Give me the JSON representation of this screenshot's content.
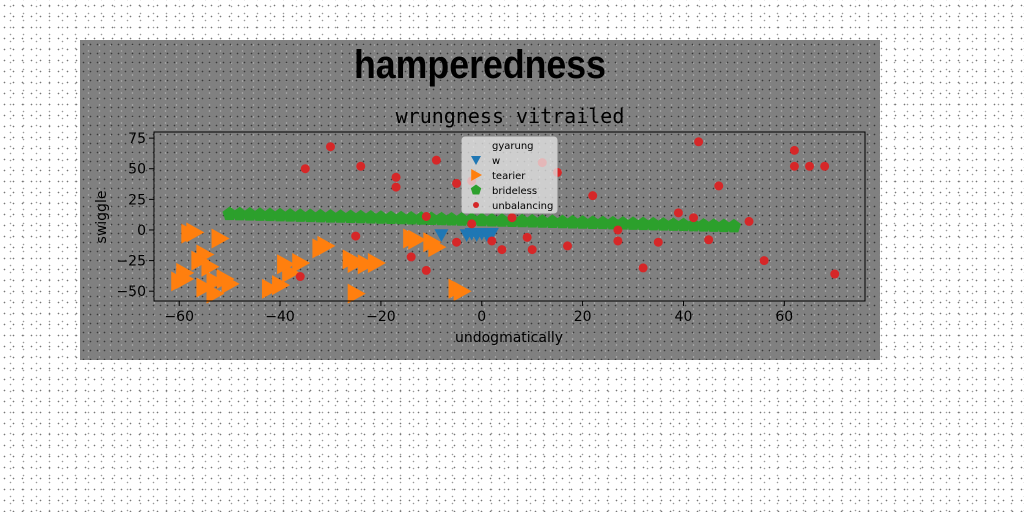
{
  "chart_data": {
    "suptitle": "hamperedness",
    "title": "wrungness vitrailed",
    "type": "scatter",
    "xlabel": "undogmatically",
    "ylabel": "swiggle",
    "xlim": [
      -65,
      76
    ],
    "ylim": [
      -58,
      80
    ],
    "xticks": [
      -60,
      -40,
      -20,
      0,
      20,
      40,
      60
    ],
    "yticks": [
      -50,
      -25,
      0,
      25,
      50,
      75
    ],
    "grid": false,
    "legend_position": "top-center",
    "series": [
      {
        "name": "gyarung",
        "marker": "none",
        "color": "#cccccc",
        "x": [],
        "y": []
      },
      {
        "name": "w",
        "marker": "triangle-down",
        "color": "#1f77b4",
        "x": [
          -8,
          -3,
          -2,
          -1,
          0,
          1,
          2
        ],
        "y": [
          -4,
          -4,
          -3,
          -4,
          -3,
          -4,
          -3
        ]
      },
      {
        "name": "tearier",
        "marker": "triangle-right",
        "color": "#ff7f0e",
        "x": [
          -58,
          -57,
          -55,
          -56,
          -54,
          -53,
          -51,
          -50,
          -59,
          -60,
          -59,
          -55,
          -52,
          -42,
          -40,
          -38,
          -39,
          -36,
          -32,
          -31,
          -26,
          -25,
          -23,
          -21,
          -14,
          -13,
          -10,
          -9,
          -5,
          -4,
          -25,
          -53
        ],
        "y": [
          -3,
          -2,
          -20,
          -25,
          -30,
          -42,
          -40,
          -44,
          -35,
          -42,
          -40,
          -47,
          -7,
          -48,
          -45,
          -35,
          -28,
          -27,
          -15,
          -13,
          -24,
          -27,
          -28,
          -27,
          -7,
          -8,
          -10,
          -14,
          -48,
          -50,
          -52,
          -52
        ]
      },
      {
        "name": "brideless",
        "marker": "pentagon",
        "color": "#2ca02c",
        "x": [
          -50,
          -48,
          -46,
          -44,
          -42,
          -40,
          -38,
          -36,
          -34,
          -32,
          -30,
          -28,
          -26,
          -24,
          -22,
          -20,
          -18,
          -16,
          -14,
          -12,
          -10,
          -8,
          -6,
          -4,
          -2,
          0,
          2,
          4,
          6,
          8,
          10,
          12,
          14,
          16,
          18,
          20,
          22,
          24,
          26,
          28,
          30,
          32,
          34,
          36,
          38,
          40,
          42,
          44,
          46,
          48,
          50
        ],
        "y": [
          13,
          12.8,
          12.6,
          12.4,
          12.2,
          12,
          11.8,
          11.6,
          11.4,
          11.2,
          11,
          10.8,
          10.6,
          10.4,
          10.2,
          10,
          9.8,
          9.6,
          9.4,
          9.2,
          9,
          8.8,
          8.6,
          8.4,
          8.2,
          8,
          7.8,
          7.6,
          7.4,
          7.2,
          7,
          6.8,
          6.6,
          6.4,
          6.2,
          6,
          5.8,
          5.6,
          5.4,
          5.2,
          5,
          4.8,
          4.6,
          4.4,
          4.2,
          4,
          3.8,
          3.6,
          3.4,
          3.2,
          3
        ]
      },
      {
        "name": "unbalancing",
        "marker": "circle",
        "color": "#d62728",
        "x": [
          -35,
          -30,
          -24,
          -17,
          -17,
          -9,
          -11,
          -25,
          -36,
          -14,
          -11,
          -5,
          -5,
          -2,
          -2,
          2,
          4,
          6,
          9,
          10,
          12,
          15,
          17,
          22,
          27,
          27,
          32,
          35,
          39,
          42,
          43,
          45,
          47,
          53,
          56,
          62,
          62,
          65,
          68,
          70
        ],
        "y": [
          50,
          68,
          52,
          43,
          35,
          57,
          11,
          -5,
          -38,
          -22,
          -33,
          38,
          -10,
          5,
          40,
          -9,
          -16,
          10,
          -6,
          -16,
          55,
          47,
          -13,
          28,
          0,
          -9,
          -31,
          -10,
          14,
          10,
          72,
          -8,
          36,
          7,
          -25,
          65,
          52,
          52,
          52,
          -36
        ]
      }
    ]
  }
}
